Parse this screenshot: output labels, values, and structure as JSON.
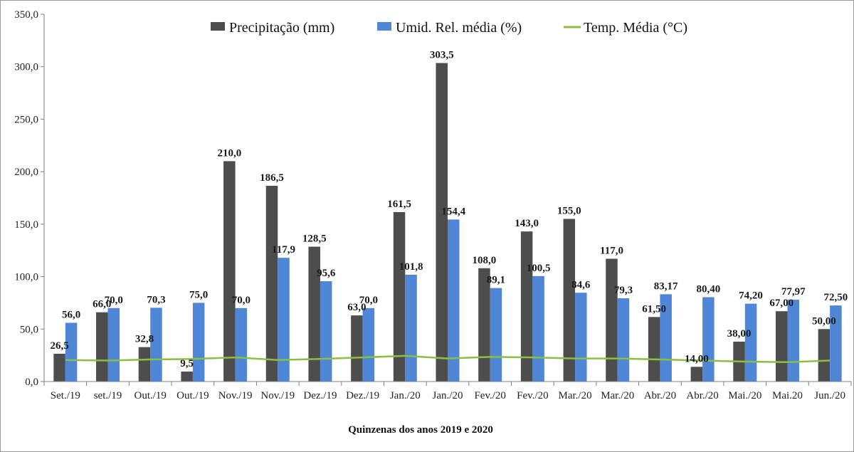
{
  "chart_data": {
    "type": "bar",
    "xlabel": "Quinzenas dos anos 2019 e 2020",
    "ylabel": "",
    "ylim": [
      0,
      350
    ],
    "yticks": [
      "0,0",
      "50,0",
      "100,0",
      "150,0",
      "200,0",
      "250,0",
      "300,0",
      "350,0"
    ],
    "ytick_values": [
      0,
      50,
      100,
      150,
      200,
      250,
      300,
      350
    ],
    "grid": false,
    "legend_position": "top-center",
    "categories": [
      "Set./19",
      "set./19",
      "Out./19",
      "Out./19",
      "Nov./19",
      "Nov./19",
      "Dez./19",
      "Dez./19",
      "Jan./20",
      "Jan./20",
      "Fev./20",
      "Fev./20",
      "Mar./20",
      "Mar./20",
      "Abr./20",
      "Abr./20",
      "Mai./20",
      "Mai.20",
      "Jun./20"
    ],
    "series": [
      {
        "name": "Precipitação (mm)",
        "kind": "bar",
        "color": "#4d4d4d",
        "values": [
          26.5,
          66.0,
          32.8,
          9.5,
          210.0,
          186.5,
          128.5,
          63.0,
          161.5,
          303.5,
          108.0,
          143.0,
          155.0,
          117.0,
          61.5,
          14.0,
          38.0,
          67.0,
          50.0
        ],
        "labels": [
          "26,5",
          "66,0",
          "32,8",
          "9,5",
          "210,0",
          "186,5",
          "128,5",
          "63,0",
          "161,5",
          "303,5",
          "108,0",
          "143,0",
          "155,0",
          "117,0",
          "61,50",
          "14,00",
          "38,00",
          "67,00",
          "50,00"
        ]
      },
      {
        "name": "Umid. Rel. média (%)",
        "kind": "bar",
        "color": "#4f86d6",
        "values": [
          56.0,
          70.0,
          70.3,
          75.0,
          70.0,
          117.9,
          95.6,
          70.0,
          101.8,
          154.4,
          89.1,
          100.5,
          84.6,
          79.3,
          83.17,
          80.4,
          74.2,
          77.97,
          72.5
        ],
        "labels": [
          "56,0",
          "70,0",
          "70,3",
          "75,0",
          "70,0",
          "117,9",
          "95,6",
          "70,0",
          "101,8",
          "154,4",
          "89,1",
          "100,5",
          "84,6",
          "79,3",
          "83,17",
          "80,40",
          "74,20",
          "77,97",
          "72,50"
        ]
      },
      {
        "name": "Temp. Média (°C)",
        "kind": "line",
        "color": "#8cbf3f",
        "values": [
          20.5,
          20.0,
          21.0,
          21.5,
          23.0,
          20.5,
          21.5,
          23.0,
          24.5,
          22.0,
          23.5,
          23.0,
          22.0,
          22.0,
          21.0,
          20.0,
          19.0,
          18.5,
          20.0
        ]
      }
    ]
  }
}
